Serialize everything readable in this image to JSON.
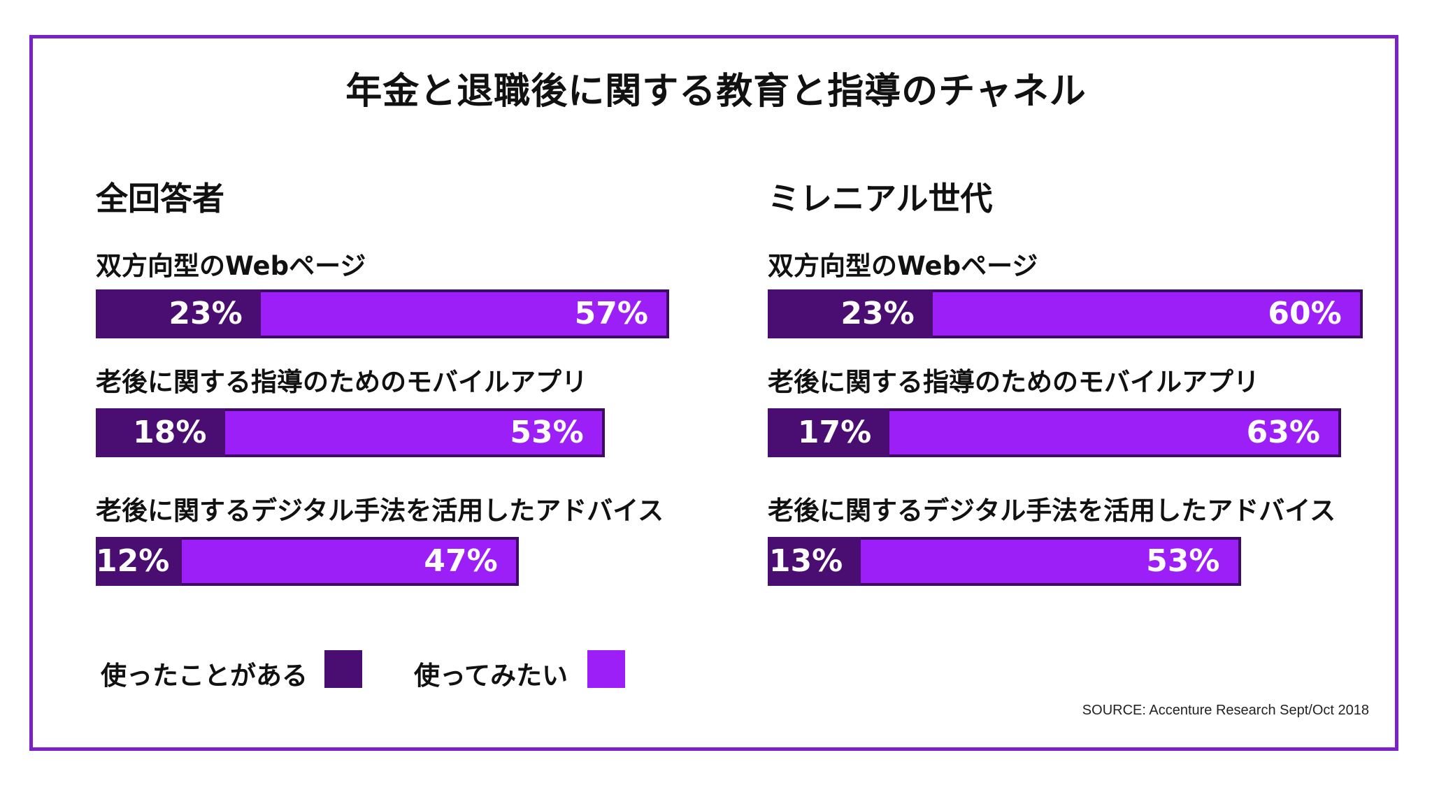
{
  "title": "年金と退職後に関する教育と指導のチャネル",
  "legend": {
    "used": {
      "label": "使ったことがある",
      "color": "#4a0e72"
    },
    "want": {
      "label": "使ってみたい",
      "color": "#9b1ff6"
    }
  },
  "source": "SOURCE: Accenture Research Sept/Oct 2018",
  "chart_data": [
    {
      "type": "bar",
      "title": "全回答者",
      "categories": [
        "双方向型のWebページ",
        "老後に関する指導のためのモバイルアプリ",
        "老後に関するデジタル手法を活用したアドバイス"
      ],
      "series": [
        {
          "name": "使ったことがある",
          "values": [
            23,
            18,
            12
          ],
          "labels": [
            "23%",
            "18%",
            "12%"
          ]
        },
        {
          "name": "使ってみたい",
          "values": [
            57,
            53,
            47
          ],
          "labels": [
            "57%",
            "53%",
            "47%"
          ]
        }
      ]
    },
    {
      "type": "bar",
      "title": "ミレニアル世代",
      "categories": [
        "双方向型のWebページ",
        "老後に関する指導のためのモバイルアプリ",
        "老後に関するデジタル手法を活用したアドバイス"
      ],
      "series": [
        {
          "name": "使ったことがある",
          "values": [
            23,
            17,
            13
          ],
          "labels": [
            "23%",
            "17%",
            "13%"
          ]
        },
        {
          "name": "使ってみたい",
          "values": [
            60,
            63,
            53
          ],
          "labels": [
            "60%",
            "63%",
            "53%"
          ]
        }
      ]
    }
  ]
}
